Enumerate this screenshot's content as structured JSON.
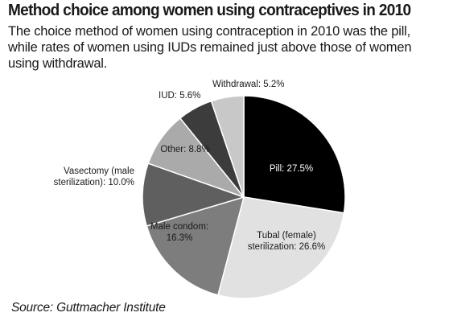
{
  "header": {
    "title": "Method choice among women using contraceptives in 2010",
    "subtitle": "The choice method of women using contraception in 2010 was the pill, while rates of women using IUDs remained just above those of women using withdrawal."
  },
  "footer": {
    "source": "Source: Guttmacher Institute"
  },
  "chart_data": {
    "type": "pie",
    "title": "Method choice among women using contraceptives in 2010",
    "units": "%",
    "start_angle_deg": 0,
    "direction": "clockwise",
    "slices": [
      {
        "label": "Pill: 27.5%",
        "name": "Pill",
        "value": 27.5,
        "color": "#000000",
        "label_color": "#ffffff"
      },
      {
        "label": "Tubal (female) sterilization: 26.6%",
        "name": "Tubal (female) sterilization",
        "value": 26.6,
        "color": "#e1e1e1",
        "label_color": "#1a1a1a"
      },
      {
        "label": "Male condom: 16.3%",
        "name": "Male condom",
        "value": 16.3,
        "color": "#7d7d7d",
        "label_color": "#1a1a1a"
      },
      {
        "label": "Vasectomy (male sterilization): 10.0%",
        "name": "Vasectomy (male sterilization)",
        "value": 10.0,
        "color": "#5f5f5f",
        "label_color": "#1a1a1a"
      },
      {
        "label": "Other: 8.8%",
        "name": "Other",
        "value": 8.8,
        "color": "#aaaaaa",
        "label_color": "#1a1a1a"
      },
      {
        "label": "IUD: 5.6%",
        "name": "IUD",
        "value": 5.6,
        "color": "#3c3c3c",
        "label_color": "#1a1a1a"
      },
      {
        "label": "Withdrawal: 5.2%",
        "name": "Withdrawal",
        "value": 5.2,
        "color": "#c8c8c8",
        "label_color": "#1a1a1a"
      }
    ]
  }
}
